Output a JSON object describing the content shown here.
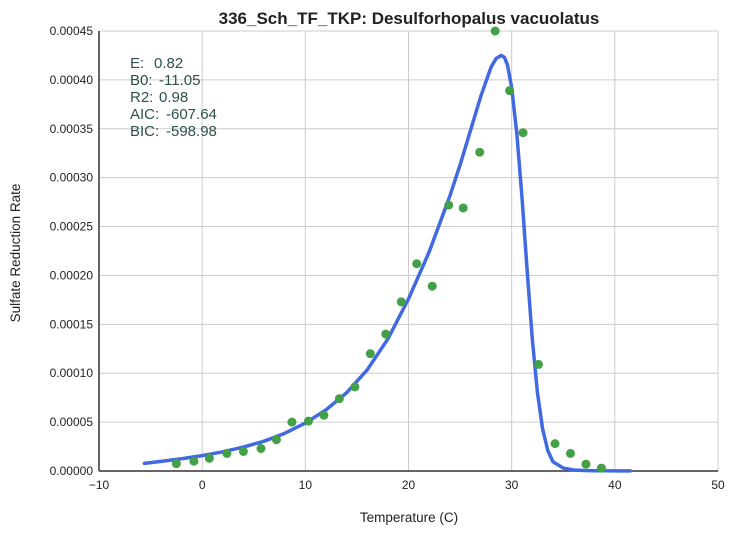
{
  "chart_data": {
    "type": "scatter",
    "title": "336_Sch_TF_TKP: Desulforhopalus vacuolatus",
    "xlabel": "Temperature (C)",
    "ylabel": "Sulfate Reduction Rate",
    "xlim": [
      -10,
      50
    ],
    "ylim": [
      0,
      0.00045
    ],
    "x_ticks": [
      "−10",
      "0",
      "10",
      "20",
      "30",
      "40",
      "50"
    ],
    "y_ticks": [
      "0.00000",
      "0.00005",
      "0.00010",
      "0.00015",
      "0.00020",
      "0.00025",
      "0.00030",
      "0.00035",
      "0.00040",
      "0.00045"
    ],
    "grid": true,
    "stats": [
      {
        "label": "E:",
        "value": "0.82"
      },
      {
        "label": "B0:",
        "value": "-11.05"
      },
      {
        "label": "R2:",
        "value": "0.98"
      },
      {
        "label": "AIC:",
        "value": "-607.64"
      },
      {
        "label": "BIC:",
        "value": "-598.98"
      }
    ],
    "colors": {
      "points": "#43a047",
      "curve": "#4169e1"
    },
    "series": [
      {
        "type": "scatter",
        "x": [
          -2.5,
          -0.8,
          0.7,
          2.4,
          4.0,
          5.7,
          7.2,
          8.7,
          10.3,
          11.8,
          13.3,
          14.8,
          16.3,
          17.8,
          19.3,
          20.8,
          22.3,
          23.9,
          25.3,
          26.9,
          28.4,
          29.8,
          31.1,
          32.6,
          34.2,
          35.7,
          37.2,
          38.7
        ],
        "y": [
          7.5e-06,
          1e-05,
          1.3e-05,
          1.8e-05,
          2e-05,
          2.3e-05,
          3.2e-05,
          5e-05,
          5.1e-05,
          5.7e-05,
          7.4e-05,
          8.6e-05,
          0.00012,
          0.00014,
          0.000173,
          0.000212,
          0.000189,
          0.000272,
          0.000269,
          0.000326,
          0.00045,
          0.000389,
          0.000346,
          0.000109,
          2.8e-05,
          1.8e-05,
          7e-06,
          3e-06
        ]
      },
      {
        "type": "line",
        "x": [
          -5.6,
          -4,
          -2,
          0,
          2,
          4,
          6,
          8,
          10,
          12,
          14,
          16,
          18,
          20,
          22,
          24,
          25,
          26,
          27,
          28,
          28.5,
          29,
          29.3,
          29.6,
          30,
          30.5,
          31,
          31.5,
          32,
          32.5,
          33,
          33.5,
          34,
          35,
          36,
          37,
          38,
          39,
          40,
          41.5
        ],
        "y": [
          7.8e-06,
          9.8e-06,
          1.25e-05,
          1.57e-05,
          1.96e-05,
          2.45e-05,
          3.05e-05,
          3.85e-05,
          4.9e-05,
          6.25e-05,
          8e-05,
          0.0001035,
          0.000135,
          0.000176,
          0.000224,
          0.000281,
          0.000313,
          0.000348,
          0.000383,
          0.000413,
          0.000422,
          0.000425,
          0.000423,
          0.000415,
          0.000392,
          0.000345,
          0.00028,
          0.000205,
          0.000135,
          8e-05,
          4.3e-05,
          2.1e-05,
          9.5e-06,
          3e-06,
          1e-06,
          5e-07,
          3e-07,
          2e-07,
          1e-07,
          1e-07
        ]
      }
    ]
  }
}
